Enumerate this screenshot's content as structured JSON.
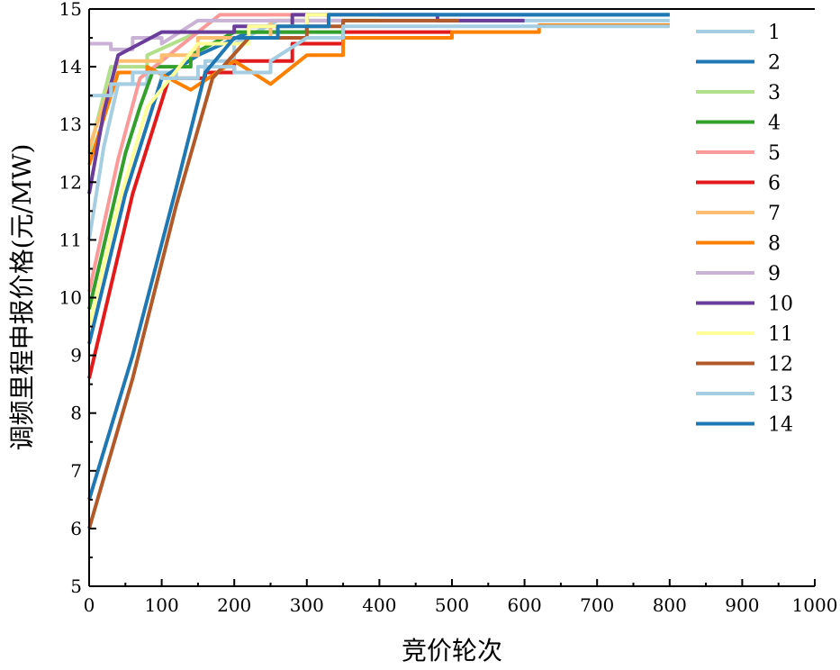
{
  "chart_data": {
    "type": "line",
    "title": "",
    "xlabel": "竞价轮次",
    "ylabel": "调频里程申报价格(元/MW)",
    "xlim": [
      0,
      1000
    ],
    "ylim": [
      5,
      15
    ],
    "xticks": [
      0,
      100,
      200,
      300,
      400,
      500,
      600,
      700,
      800,
      900,
      1000
    ],
    "yticks": [
      5,
      6,
      7,
      8,
      9,
      10,
      11,
      12,
      13,
      14,
      15
    ],
    "grid": false,
    "legend_position": "right",
    "series": [
      {
        "name": "1",
        "color": "#a6cee3",
        "points": [
          [
            0,
            11.0
          ],
          [
            20,
            12.6
          ],
          [
            40,
            13.7
          ],
          [
            80,
            13.9
          ],
          [
            120,
            13.8
          ],
          [
            160,
            14.1
          ],
          [
            200,
            14.4
          ],
          [
            260,
            14.8
          ],
          [
            800,
            14.8
          ]
        ]
      },
      {
        "name": "2",
        "color": "#1f78b4",
        "points": [
          [
            0,
            9.2
          ],
          [
            50,
            11.8
          ],
          [
            100,
            13.8
          ],
          [
            150,
            14.2
          ],
          [
            220,
            14.6
          ],
          [
            300,
            14.9
          ],
          [
            800,
            14.9
          ]
        ]
      },
      {
        "name": "3",
        "color": "#b2df8a",
        "points": [
          [
            0,
            12.5
          ],
          [
            30,
            14.0
          ],
          [
            80,
            14.2
          ],
          [
            150,
            14.6
          ],
          [
            250,
            14.8
          ],
          [
            400,
            14.8
          ]
        ]
      },
      {
        "name": "4",
        "color": "#33a02c",
        "points": [
          [
            0,
            9.8
          ],
          [
            50,
            12.5
          ],
          [
            70,
            13.3
          ],
          [
            90,
            14.0
          ],
          [
            140,
            14.2
          ],
          [
            200,
            14.6
          ],
          [
            350,
            14.8
          ]
        ]
      },
      {
        "name": "5",
        "color": "#fb9a99",
        "points": [
          [
            0,
            10.1
          ],
          [
            40,
            12.4
          ],
          [
            70,
            13.8
          ],
          [
            120,
            14.3
          ],
          [
            180,
            14.9
          ],
          [
            400,
            14.9
          ]
        ]
      },
      {
        "name": "6",
        "color": "#e31a1c",
        "points": [
          [
            0,
            8.6
          ],
          [
            60,
            11.8
          ],
          [
            110,
            13.8
          ],
          [
            160,
            13.9
          ],
          [
            200,
            14.1
          ],
          [
            280,
            14.4
          ],
          [
            350,
            14.6
          ],
          [
            500,
            14.6
          ]
        ]
      },
      {
        "name": "7",
        "color": "#fdbf6f",
        "points": [
          [
            0,
            12.6
          ],
          [
            40,
            14.1
          ],
          [
            100,
            14.2
          ],
          [
            150,
            14.5
          ],
          [
            250,
            14.8
          ],
          [
            300,
            14.8
          ]
        ]
      },
      {
        "name": "8",
        "color": "#ff7f00",
        "points": [
          [
            0,
            12.3
          ],
          [
            40,
            13.9
          ],
          [
            80,
            14.0
          ],
          [
            140,
            13.6
          ],
          [
            200,
            14.1
          ],
          [
            250,
            13.7
          ],
          [
            300,
            14.2
          ],
          [
            350,
            14.5
          ],
          [
            500,
            14.6
          ],
          [
            620,
            14.72
          ],
          [
            800,
            14.72
          ]
        ]
      },
      {
        "name": "9",
        "color": "#cab2d6",
        "points": [
          [
            0,
            14.4
          ],
          [
            30,
            14.3
          ],
          [
            60,
            14.5
          ],
          [
            100,
            14.4
          ],
          [
            150,
            14.8
          ],
          [
            350,
            14.8
          ]
        ]
      },
      {
        "name": "10",
        "color": "#6a3d9a",
        "points": [
          [
            0,
            11.8
          ],
          [
            20,
            13.2
          ],
          [
            40,
            14.2
          ],
          [
            100,
            14.6
          ],
          [
            200,
            14.7
          ],
          [
            280,
            14.9
          ],
          [
            400,
            14.9
          ],
          [
            480,
            14.8
          ],
          [
            600,
            14.8
          ]
        ]
      },
      {
        "name": "11",
        "color": "#ffff99",
        "points": [
          [
            0,
            9.5
          ],
          [
            40,
            11.6
          ],
          [
            80,
            13.3
          ],
          [
            150,
            14.4
          ],
          [
            220,
            14.7
          ],
          [
            300,
            14.9
          ],
          [
            400,
            14.9
          ]
        ]
      },
      {
        "name": "12",
        "color": "#b15928",
        "points": [
          [
            0,
            6.0
          ],
          [
            60,
            8.6
          ],
          [
            120,
            11.6
          ],
          [
            170,
            13.8
          ],
          [
            220,
            14.5
          ],
          [
            300,
            14.7
          ],
          [
            350,
            14.8
          ],
          [
            510,
            14.8
          ]
        ]
      },
      {
        "name": "13",
        "color": "#a6cee3",
        "points": [
          [
            0,
            13.5
          ],
          [
            30,
            13.7
          ],
          [
            60,
            13.9
          ],
          [
            100,
            13.8
          ],
          [
            150,
            14.0
          ],
          [
            200,
            13.9
          ],
          [
            250,
            14.1
          ],
          [
            300,
            14.5
          ],
          [
            350,
            14.7
          ],
          [
            800,
            14.7
          ]
        ]
      },
      {
        "name": "14",
        "color": "#1f78b4",
        "points": [
          [
            0,
            6.5
          ],
          [
            60,
            9.0
          ],
          [
            120,
            11.9
          ],
          [
            160,
            13.9
          ],
          [
            200,
            14.5
          ],
          [
            260,
            14.7
          ],
          [
            330,
            14.9
          ],
          [
            800,
            14.9
          ]
        ]
      }
    ]
  }
}
